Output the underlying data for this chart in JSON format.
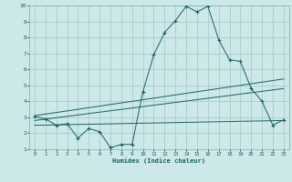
{
  "xlabel": "Humidex (Indice chaleur)",
  "background_color": "#cce8e8",
  "grid_color": "#aacccc",
  "line_color": "#1a6060",
  "xlim": [
    -0.5,
    23.5
  ],
  "ylim": [
    1,
    10
  ],
  "xticks": [
    0,
    1,
    2,
    3,
    4,
    5,
    6,
    7,
    8,
    9,
    10,
    11,
    12,
    13,
    14,
    15,
    16,
    17,
    18,
    19,
    20,
    21,
    22,
    23
  ],
  "yticks": [
    1,
    2,
    3,
    4,
    5,
    6,
    7,
    8,
    9,
    10
  ],
  "main_line_x": [
    0,
    1,
    2,
    3,
    4,
    5,
    6,
    7,
    8,
    9,
    10,
    11,
    12,
    13,
    14,
    15,
    16,
    17,
    18,
    19,
    20,
    21,
    22,
    23
  ],
  "main_line_y": [
    3.05,
    2.9,
    2.5,
    2.6,
    1.7,
    2.3,
    2.1,
    1.1,
    1.3,
    1.3,
    4.6,
    6.9,
    8.3,
    9.05,
    9.95,
    9.6,
    9.95,
    7.85,
    6.6,
    6.5,
    4.8,
    4.0,
    2.5,
    2.85
  ],
  "line2_x": [
    0,
    23
  ],
  "line2_y": [
    3.1,
    5.4
  ],
  "line3_x": [
    0,
    23
  ],
  "line3_y": [
    2.8,
    4.8
  ],
  "line4_x": [
    0,
    23
  ],
  "line4_y": [
    2.5,
    2.8
  ]
}
